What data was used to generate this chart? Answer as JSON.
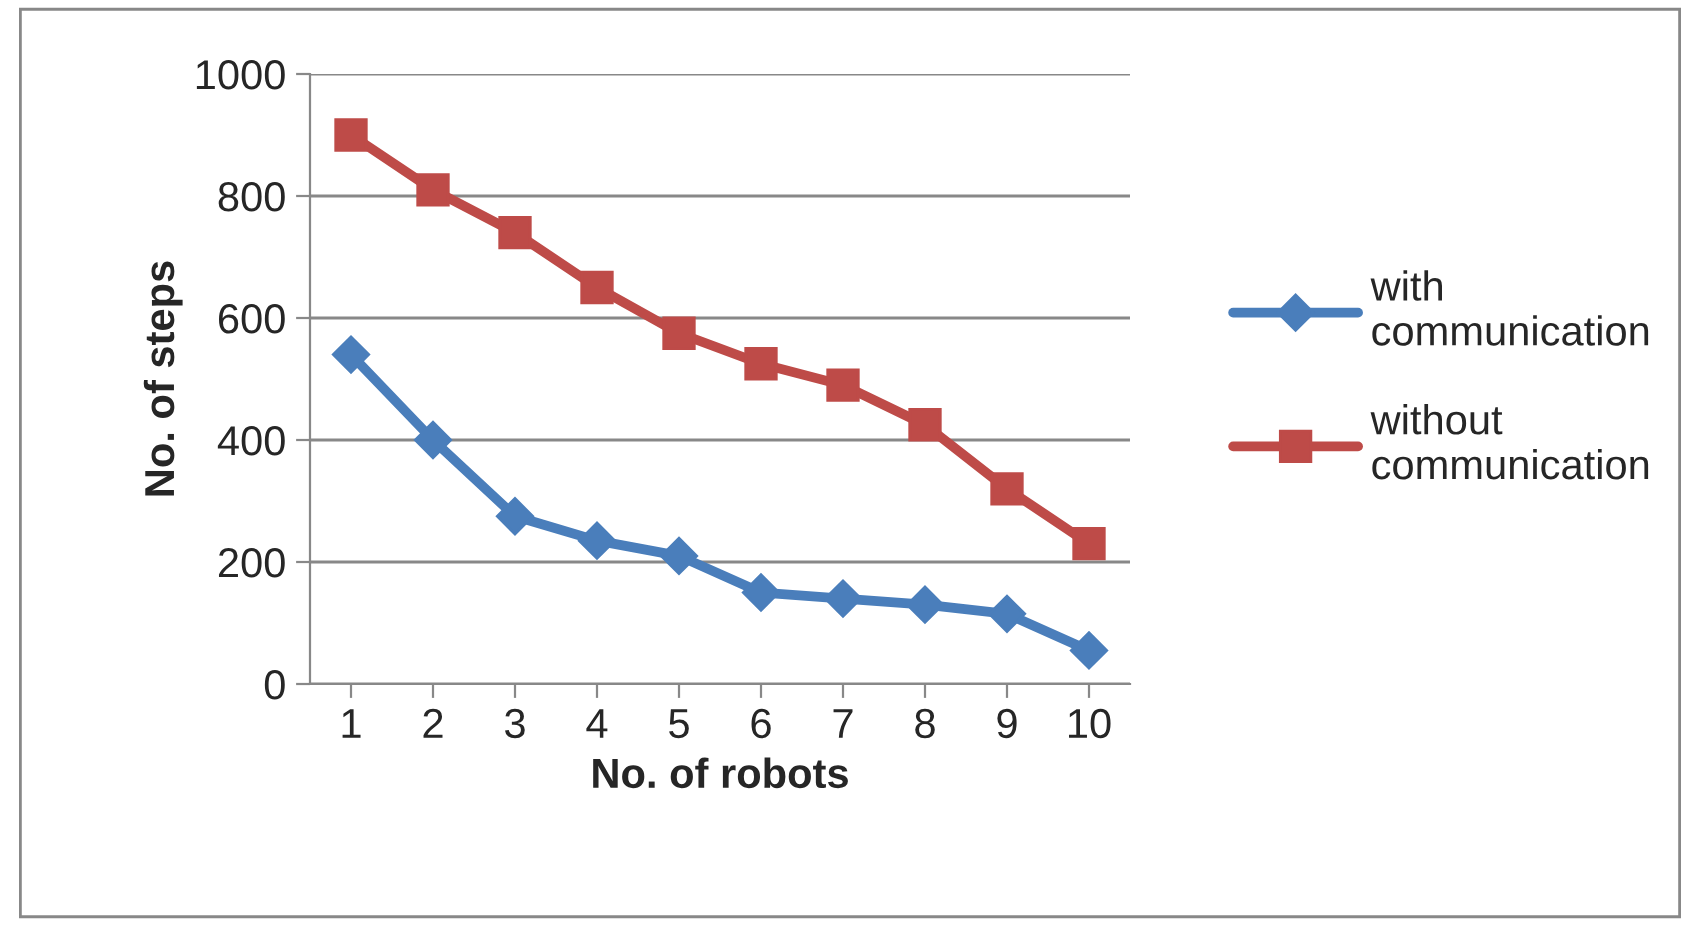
{
  "chart_data": {
    "type": "line",
    "xlabel": "No. of robots",
    "ylabel": "No. of steps",
    "categories": [
      "1",
      "2",
      "3",
      "4",
      "5",
      "6",
      "7",
      "8",
      "9",
      "10"
    ],
    "series": [
      {
        "name": "with communication",
        "color": "#4a7ebb",
        "marker": "diamond",
        "values": [
          540,
          400,
          275,
          235,
          210,
          150,
          140,
          130,
          115,
          55
        ]
      },
      {
        "name": "without communication",
        "color": "#be4b48",
        "marker": "square",
        "values": [
          900,
          810,
          740,
          650,
          575,
          525,
          490,
          425,
          320,
          230
        ]
      }
    ],
    "ylim": [
      0,
      1000
    ],
    "yticks": [
      0,
      200,
      400,
      600,
      800,
      1000
    ],
    "grid": "y",
    "legend": "right",
    "line_style": "solid"
  }
}
